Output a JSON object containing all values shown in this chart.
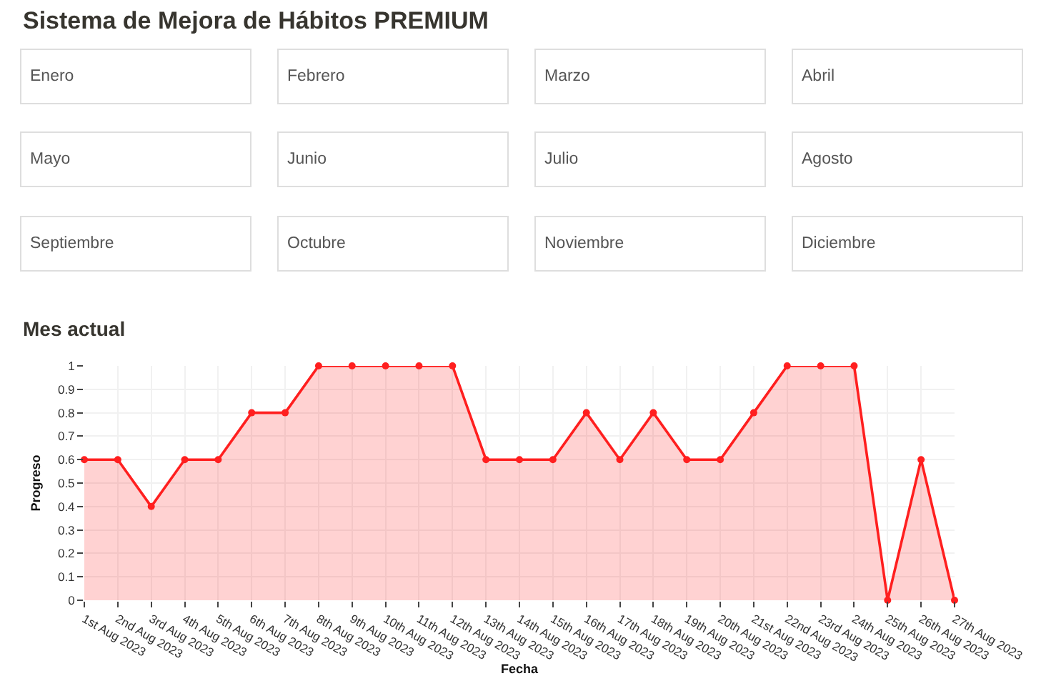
{
  "chart_data": [
    {
      "type": "other",
      "title": "Sistema de Mejora de Hábitos PREMIUM",
      "annotations": [
        "Enero",
        "Febrero",
        "Marzo",
        "Abril",
        "Mayo",
        "Junio",
        "Julio",
        "Agosto",
        "Septiembre",
        "Octubre",
        "Noviembre",
        "Diciembre"
      ]
    },
    {
      "type": "area",
      "title": "Mes actual",
      "xlabel": "Fecha",
      "ylabel": "Progreso",
      "categories": [
        "1st Aug 2023",
        "2nd Aug 2023",
        "3rd Aug 2023",
        "4th Aug 2023",
        "5th Aug 2023",
        "6th Aug 2023",
        "7th Aug 2023",
        "8th Aug 2023",
        "9th Aug 2023",
        "10th Aug 2023",
        "11th Aug 2023",
        "12th Aug 2023",
        "13th Aug 2023",
        "14th Aug 2023",
        "15th Aug 2023",
        "16th Aug 2023",
        "17th Aug 2023",
        "18th Aug 2023",
        "19th Aug 2023",
        "20th Aug 2023",
        "21st Aug 2023",
        "22nd Aug 2023",
        "23rd Aug 2023",
        "24th Aug 2023",
        "25th Aug 2023",
        "26th Aug 2023",
        "27th Aug 2023"
      ],
      "series": [
        {
          "color": "#ff1f1f",
          "values": [
            0.6,
            0.6,
            0.4,
            0.6,
            0.6,
            0.8,
            0.8,
            1,
            1,
            1,
            1,
            1,
            0.6,
            0.6,
            0.6,
            0.8,
            0.6,
            0.8,
            0.6,
            0.6,
            0.8,
            1,
            1,
            1,
            0,
            0.6,
            0
          ]
        }
      ],
      "ylim": [
        0,
        1
      ],
      "yticks": [
        0,
        0.1,
        0.2,
        0.3,
        0.4,
        0.5,
        0.6,
        0.7,
        0.8,
        0.9,
        1
      ],
      "grid": true,
      "marker": "circle",
      "line_style": "solid"
    }
  ]
}
